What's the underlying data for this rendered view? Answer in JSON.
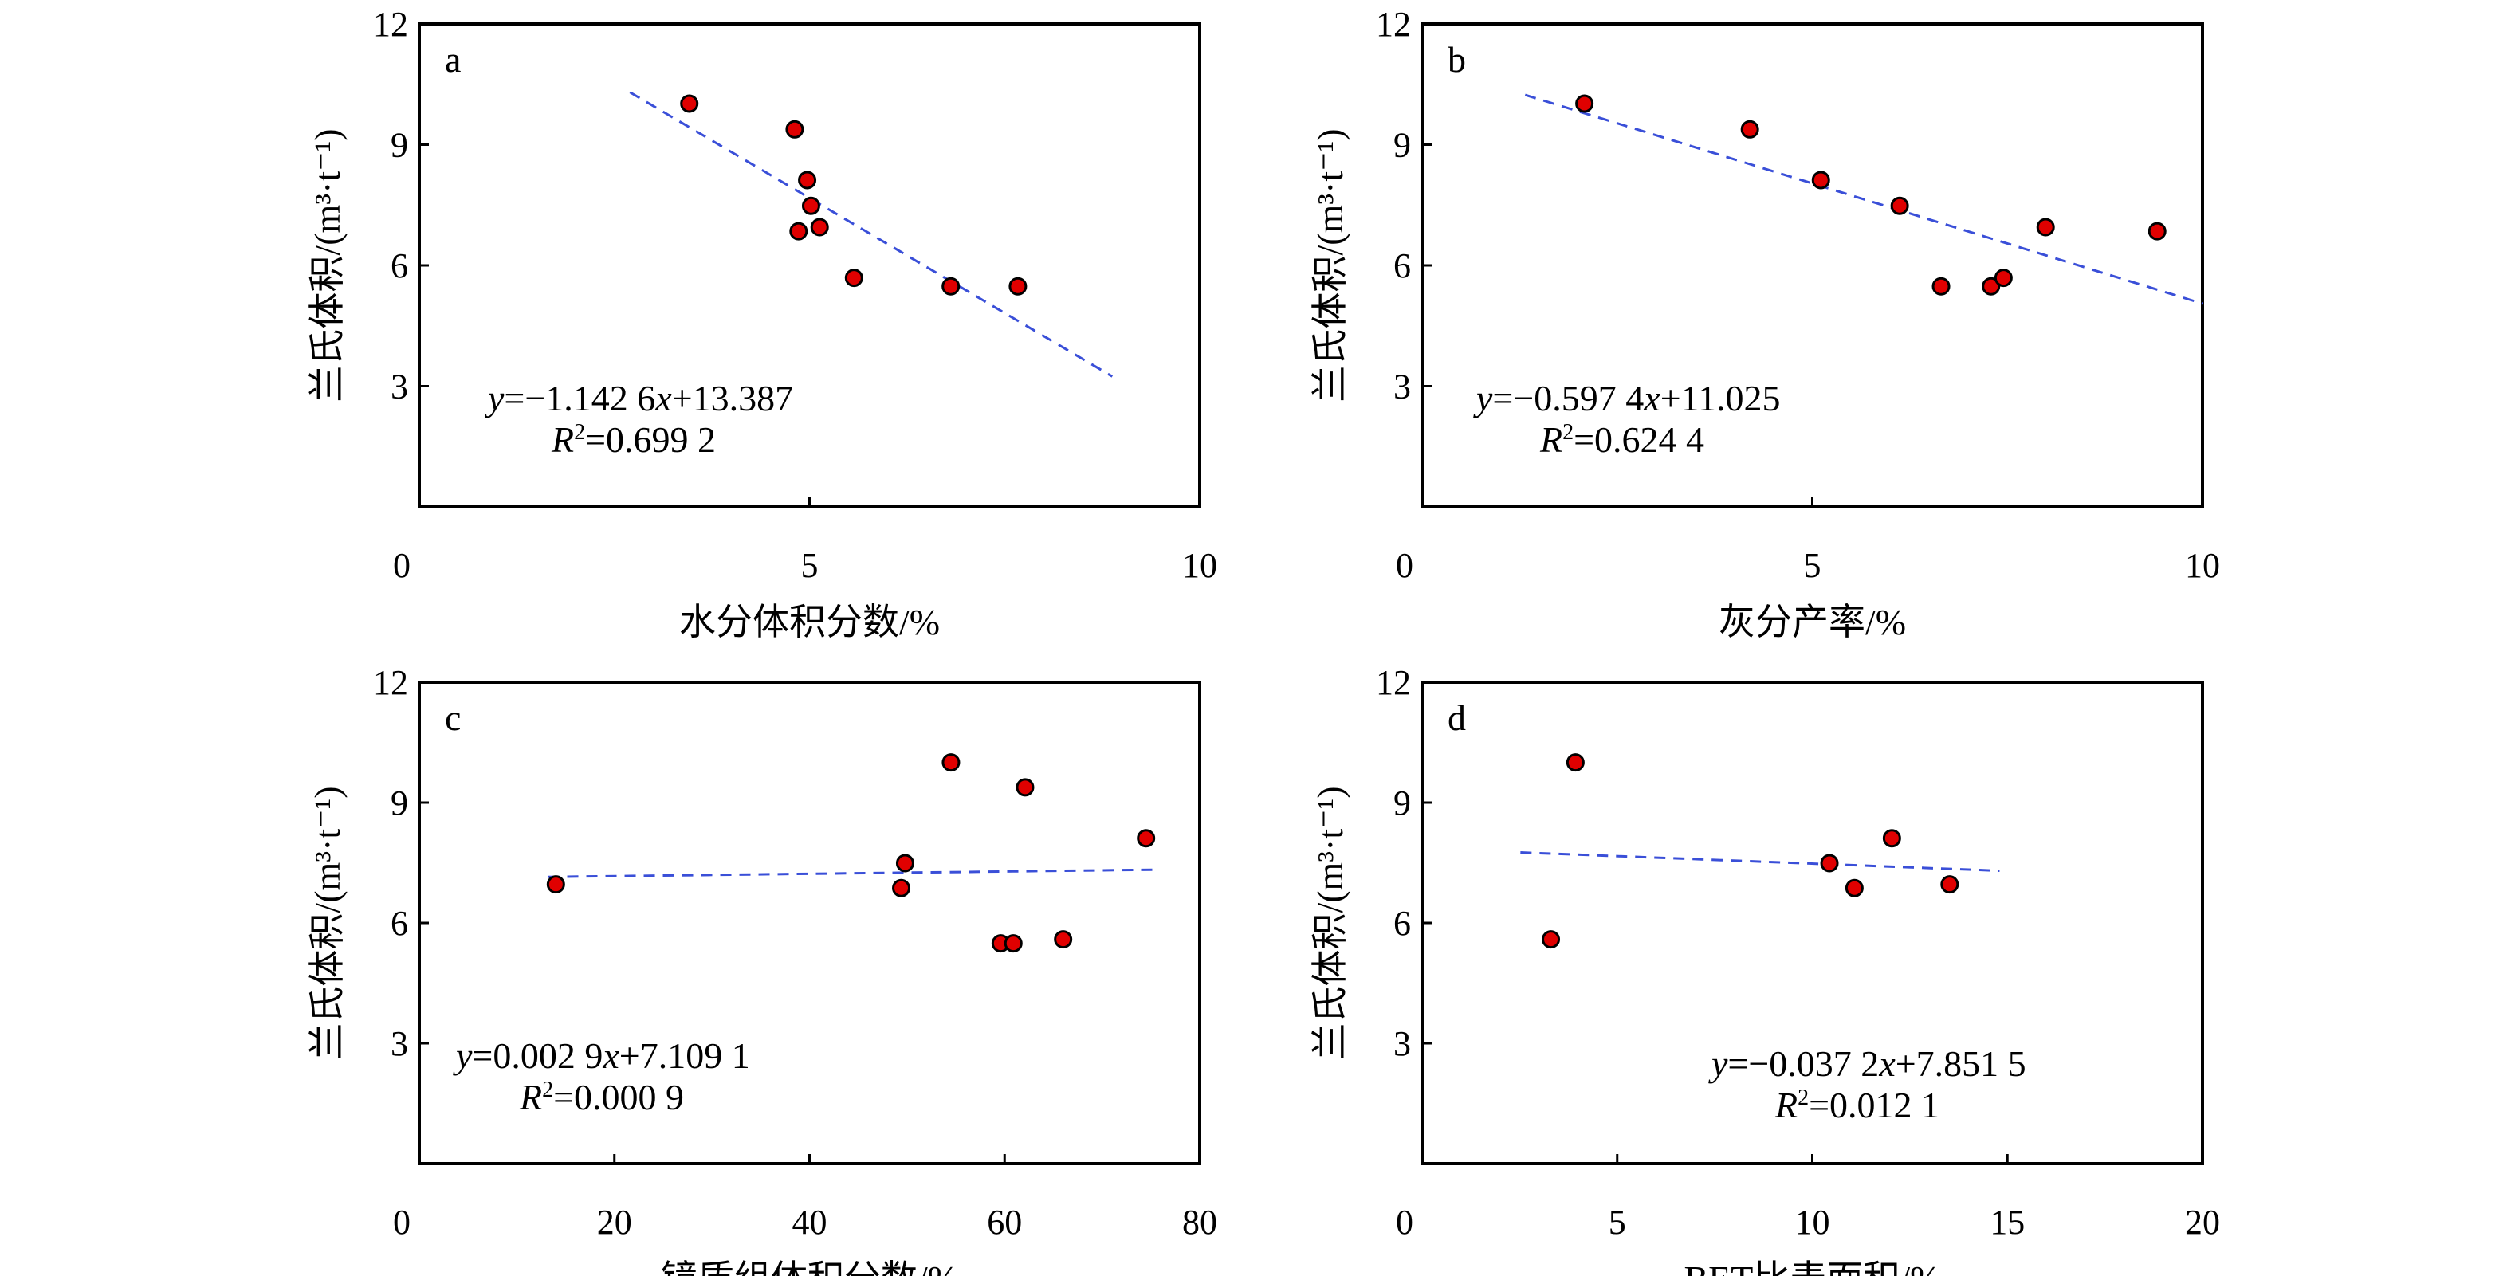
{
  "style": {
    "point_fill": "#e00000",
    "point_stroke": "#000000",
    "trend_color": "#3a4fd8",
    "trend_style": "dashed"
  },
  "chart_data": [
    {
      "type": "scatter",
      "panel": "a",
      "xlabel": "水分体积分数/%",
      "ylabel": "兰氏体积/(m³·t⁻¹)",
      "xlim": [
        0,
        10
      ],
      "ylim": [
        0,
        12
      ],
      "xticks": [
        0,
        5,
        10
      ],
      "yticks": [
        3,
        6,
        9,
        12
      ],
      "points": [
        [
          3.46,
          10.02
        ],
        [
          4.81,
          9.38
        ],
        [
          4.97,
          8.12
        ],
        [
          5.02,
          7.48
        ],
        [
          4.86,
          6.85
        ],
        [
          5.13,
          6.95
        ],
        [
          5.57,
          5.69
        ],
        [
          6.81,
          5.48
        ],
        [
          7.67,
          5.48
        ]
      ],
      "fit": {
        "slope": -1.1426,
        "intercept": 13.387,
        "x_range": [
          2.7,
          8.88
        ]
      },
      "equation": "=−1.142 6",
      "equation_tail": "+13.387",
      "r2": "=0.699 2"
    },
    {
      "type": "scatter",
      "panel": "b",
      "xlabel": "灰分产率/%",
      "ylabel": "兰氏体积/(m³·t⁻¹)",
      "xlim": [
        0,
        10
      ],
      "ylim": [
        0,
        12
      ],
      "xticks": [
        0,
        5,
        10
      ],
      "yticks": [
        3,
        6,
        9,
        12
      ],
      "points": [
        [
          2.08,
          10.02
        ],
        [
          4.2,
          9.38
        ],
        [
          5.11,
          8.12
        ],
        [
          6.12,
          7.48
        ],
        [
          6.65,
          5.48
        ],
        [
          7.29,
          5.48
        ],
        [
          7.45,
          5.69
        ],
        [
          7.99,
          6.95
        ],
        [
          9.42,
          6.85
        ]
      ],
      "fit": {
        "slope": -0.5974,
        "intercept": 11.025,
        "x_range": [
          1.32,
          10
        ]
      },
      "equation": "=−0.597 4",
      "equation_tail": "+11.025",
      "r2": "=0.624 4"
    },
    {
      "type": "scatter",
      "panel": "c",
      "xlabel": "镜质组体积分数/%",
      "ylabel": "兰氏体积/(m³·t⁻¹)",
      "xlim": [
        0,
        80
      ],
      "ylim": [
        0,
        12
      ],
      "xticks": [
        0,
        20,
        40,
        60,
        80
      ],
      "yticks": [
        3,
        6,
        9,
        12
      ],
      "points": [
        [
          14.0,
          6.96
        ],
        [
          49.4,
          6.87
        ],
        [
          49.8,
          7.49
        ],
        [
          54.5,
          10.0
        ],
        [
          62.1,
          9.38
        ],
        [
          59.6,
          5.49
        ],
        [
          60.9,
          5.49
        ],
        [
          66.0,
          5.59
        ],
        [
          74.5,
          8.11
        ]
      ],
      "fit": {
        "slope": 0.0029,
        "intercept": 7.1091,
        "x_range": [
          13.2,
          75.8
        ]
      },
      "equation": "=0.002 9",
      "equation_tail": "+7.109 1",
      "r2": "=0.000 9"
    },
    {
      "type": "scatter",
      "panel": "d",
      "xlabel": "BET比表面积/%",
      "ylabel": "兰氏体积/(m³·t⁻¹)",
      "xlim": [
        0,
        20
      ],
      "ylim": [
        0,
        12
      ],
      "xticks": [
        0,
        5,
        10,
        15,
        20
      ],
      "yticks": [
        3,
        6,
        9,
        12
      ],
      "points": [
        [
          3.93,
          10.0
        ],
        [
          3.3,
          5.59
        ],
        [
          10.44,
          7.49
        ],
        [
          11.08,
          6.87
        ],
        [
          12.04,
          8.11
        ],
        [
          13.52,
          6.96
        ]
      ],
      "fit": {
        "slope": -0.0372,
        "intercept": 7.8515,
        "x_range": [
          2.52,
          14.8
        ]
      },
      "equation": "=−0.037 2",
      "equation_tail": "+7.851 5",
      "r2": "=0.012 1"
    }
  ]
}
